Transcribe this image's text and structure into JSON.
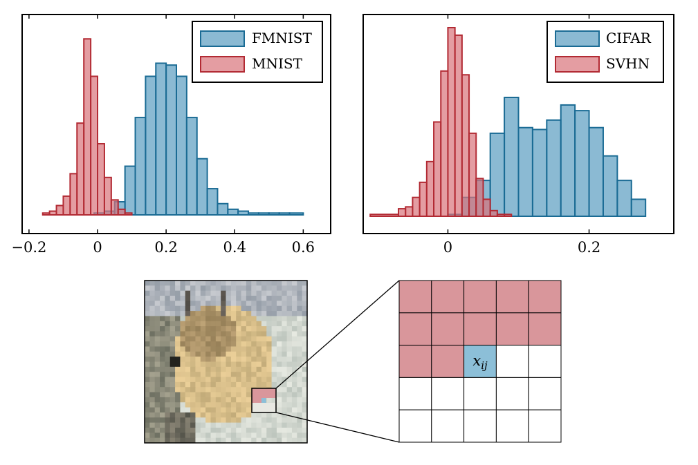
{
  "chart_data": [
    {
      "type": "histogram",
      "xlim": [
        -0.22,
        0.68
      ],
      "ylim": [
        0,
        1
      ],
      "xticks": [
        -0.2,
        0,
        0.2,
        0.4,
        0.6
      ],
      "xtick_labels": [
        "−0.2",
        "0",
        "0.2",
        "0.4",
        "0.6"
      ],
      "legend_position": "top-right",
      "series": [
        {
          "name": "FMNIST",
          "color": "#5a9dc0",
          "edge_color": "#1a6b94",
          "bin_edges": [
            -0.16,
            -0.13,
            -0.1,
            -0.07,
            -0.04,
            -0.01,
            0.02,
            0.05,
            0.08,
            0.11,
            0.14,
            0.17,
            0.2,
            0.23,
            0.26,
            0.29,
            0.32,
            0.35,
            0.38,
            0.41,
            0.44,
            0.47,
            0.5,
            0.53,
            0.56,
            0.6
          ],
          "values": [
            0,
            0,
            0,
            0,
            0,
            0.01,
            0.02,
            0.07,
            0.26,
            0.52,
            0.74,
            0.81,
            0.8,
            0.74,
            0.52,
            0.3,
            0.14,
            0.06,
            0.03,
            0.02,
            0.01,
            0.01,
            0.01,
            0.01,
            0.01
          ]
        },
        {
          "name": "MNIST",
          "color": "#d9737a",
          "edge_color": "#b22a33",
          "bin_edges": [
            -0.16,
            -0.14,
            -0.12,
            -0.1,
            -0.08,
            -0.06,
            -0.04,
            -0.02,
            0,
            0.02,
            0.04,
            0.06,
            0.08,
            0.1
          ],
          "values": [
            0.01,
            0.02,
            0.05,
            0.1,
            0.22,
            0.49,
            0.94,
            0.74,
            0.38,
            0.2,
            0.08,
            0.03,
            0.01
          ]
        }
      ]
    },
    {
      "type": "histogram",
      "xlim": [
        -0.12,
        0.32
      ],
      "ylim": [
        0,
        1
      ],
      "xticks": [
        0,
        0.2
      ],
      "xtick_labels": [
        "0",
        "0.2"
      ],
      "legend_position": "top-right",
      "series": [
        {
          "name": "CIFAR",
          "color": "#5a9dc0",
          "edge_color": "#1a6b94",
          "bin_edges": [
            0.0,
            0.02,
            0.04,
            0.06,
            0.08,
            0.1,
            0.12,
            0.14,
            0.16,
            0.18,
            0.2,
            0.22,
            0.24,
            0.26,
            0.28
          ],
          "values": [
            0.01,
            0.1,
            0.19,
            0.44,
            0.63,
            0.47,
            0.46,
            0.51,
            0.59,
            0.56,
            0.47,
            0.32,
            0.19,
            0.09
          ]
        },
        {
          "name": "SVHN",
          "color": "#d9737a",
          "edge_color": "#b22a33",
          "bin_edges": [
            -0.11,
            -0.07,
            -0.06,
            -0.05,
            -0.04,
            -0.03,
            -0.02,
            -0.01,
            0,
            0.01,
            0.02,
            0.03,
            0.04,
            0.05,
            0.06,
            0.07,
            0.08,
            0.09
          ],
          "values": [
            0.01,
            0.04,
            0.05,
            0.1,
            0.18,
            0.29,
            0.5,
            0.77,
            1.0,
            0.96,
            0.75,
            0.44,
            0.2,
            0.09,
            0.03,
            0.01,
            0.01
          ]
        }
      ]
    }
  ],
  "diagram": {
    "pixel_label": "x",
    "pixel_label_subscript": "ij",
    "grid_rows": 5,
    "grid_cols": 5,
    "context_color": "#d9969b",
    "target_color": "#8cbfd8"
  }
}
